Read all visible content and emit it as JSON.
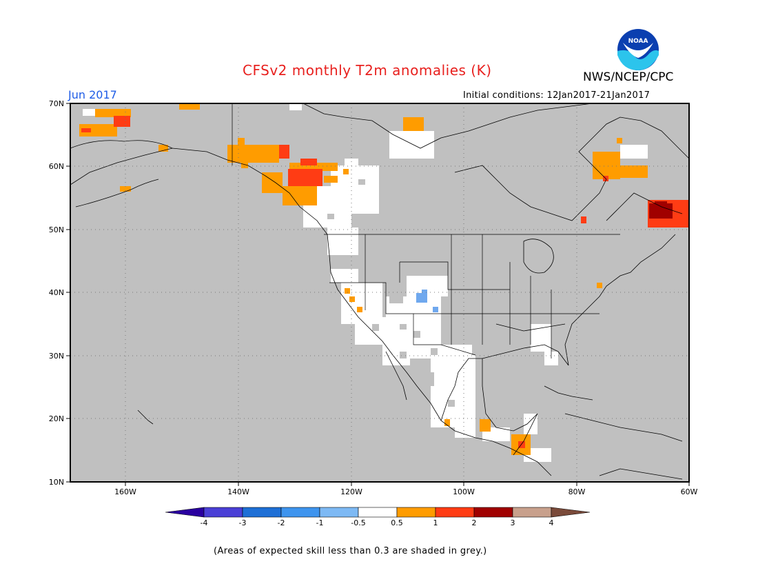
{
  "title": "CFSv2 monthly T2m anomalies (K)",
  "agency": "NWS/NCEP/CPC",
  "logo_text": "NOAA",
  "month": "Jun 2017",
  "initial_conditions": "Initial conditions: 12Jan2017-21Jan2017",
  "lat_labels": [
    "70N",
    "60N",
    "50N",
    "40N",
    "30N",
    "20N",
    "10N"
  ],
  "lon_labels": [
    "160W",
    "140W",
    "120W",
    "100W",
    "80W",
    "60W"
  ],
  "colorbar": {
    "colors": [
      "#2a00a0",
      "#4a3fd6",
      "#1e6fd6",
      "#3e94ee",
      "#7db9f4",
      "#ffffff",
      "#ff9c00",
      "#ff3c14",
      "#a00000",
      "#c8a08c",
      "#7a4a3a"
    ],
    "labels": [
      "-4",
      "-3",
      "-2",
      "-1",
      "-0.5",
      "0.5",
      "1",
      "2",
      "3",
      "4"
    ]
  },
  "note": "(Areas of expected skill less than 0.3 are shaded in grey.)",
  "colors": {
    "grey": "#c0c0c0",
    "title": "#e8201e",
    "month": "#1e5ce6"
  }
}
